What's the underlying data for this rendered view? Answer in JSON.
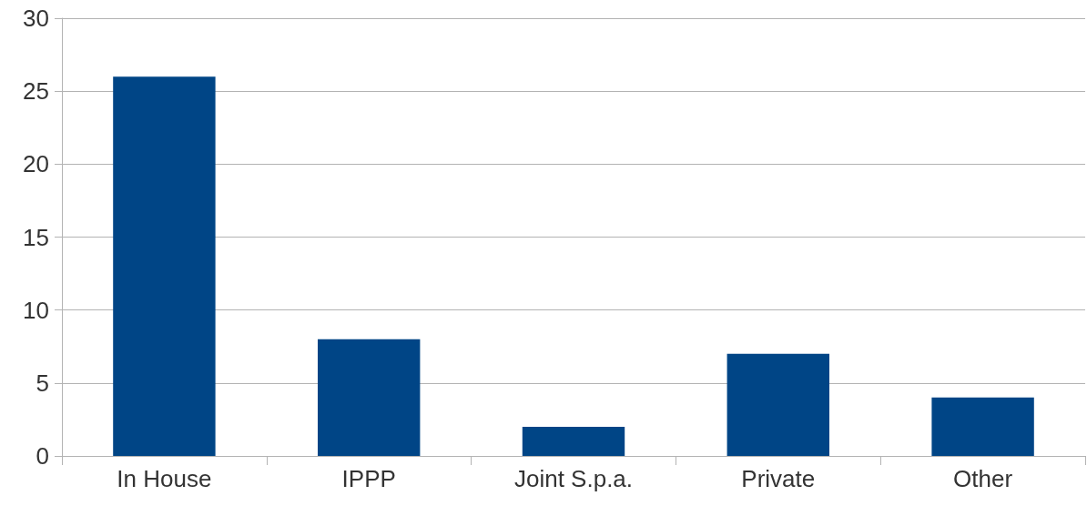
{
  "chart_data": {
    "type": "bar",
    "categories": [
      "In House",
      "IPPP",
      "Joint S.p.a.",
      "Private",
      "Other"
    ],
    "values": [
      26,
      8,
      2,
      7,
      4
    ],
    "color": "#004586",
    "ylim": [
      0,
      30
    ],
    "yticks": [
      0,
      5,
      10,
      15,
      20,
      25,
      30
    ],
    "grid": "y"
  }
}
